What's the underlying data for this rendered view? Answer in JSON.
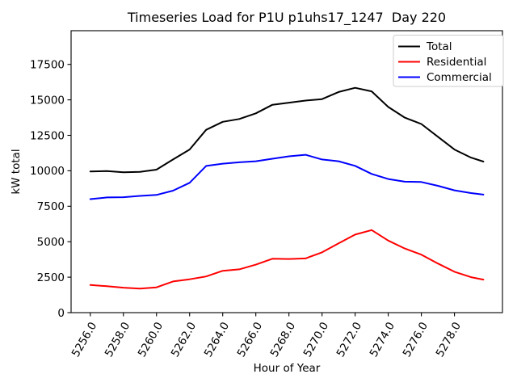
{
  "figure": {
    "background": "#ffffff"
  },
  "chart_data": {
    "type": "line",
    "title": "Timeseries Load for P1U p1uhs17_1247  Day 220",
    "xlabel": "Hour of Year",
    "ylabel": "kW total",
    "grid": false,
    "legend_position": "upper right",
    "xtick_rotation_deg": 60,
    "xlim": [
      5254.84,
      5280.9
    ],
    "ylim": [
      0,
      19875
    ],
    "xticks": [
      5256,
      5258,
      5260,
      5262,
      5264,
      5266,
      5268,
      5270,
      5272,
      5274,
      5276,
      5278
    ],
    "xtick_labels": [
      "5256.0",
      "5258.0",
      "5260.0",
      "5262.0",
      "5264.0",
      "5266.0",
      "5268.0",
      "5270.0",
      "5272.0",
      "5274.0",
      "5276.0",
      "5278.0"
    ],
    "yticks": [
      0,
      2500,
      5000,
      7500,
      10000,
      12500,
      15000,
      17500
    ],
    "ytick_labels": [
      "0",
      "2500",
      "5000",
      "7500",
      "10000",
      "12500",
      "15000",
      "17500"
    ],
    "x": [
      5256,
      5257,
      5258,
      5259,
      5260,
      5261,
      5262,
      5263,
      5264,
      5265,
      5266,
      5267,
      5268,
      5269,
      5270,
      5271,
      5272,
      5273,
      5274,
      5275,
      5276,
      5277,
      5278,
      5279,
      5279.75
    ],
    "series": [
      {
        "name": "Total",
        "color": "#000000",
        "values": [
          9950,
          9980,
          9900,
          9920,
          10080,
          10800,
          11500,
          12890,
          13450,
          13650,
          14050,
          14650,
          14800,
          14950,
          15050,
          15550,
          15850,
          15600,
          14500,
          13750,
          13300,
          12400,
          11500,
          10930,
          10650
        ]
      },
      {
        "name": "Residential",
        "color": "#ff0000",
        "values": [
          1950,
          1860,
          1760,
          1690,
          1780,
          2200,
          2350,
          2550,
          2950,
          3050,
          3380,
          3800,
          3780,
          3820,
          4250,
          4880,
          5500,
          5820,
          5080,
          4520,
          4090,
          3460,
          2880,
          2500,
          2330
        ]
      },
      {
        "name": "Commercial",
        "color": "#0000ff",
        "values": [
          8000,
          8120,
          8140,
          8230,
          8300,
          8600,
          9150,
          10340,
          10500,
          10600,
          10670,
          10850,
          11020,
          11130,
          10800,
          10670,
          10350,
          9780,
          9420,
          9230,
          9210,
          8940,
          8620,
          8430,
          8320
        ]
      }
    ]
  }
}
